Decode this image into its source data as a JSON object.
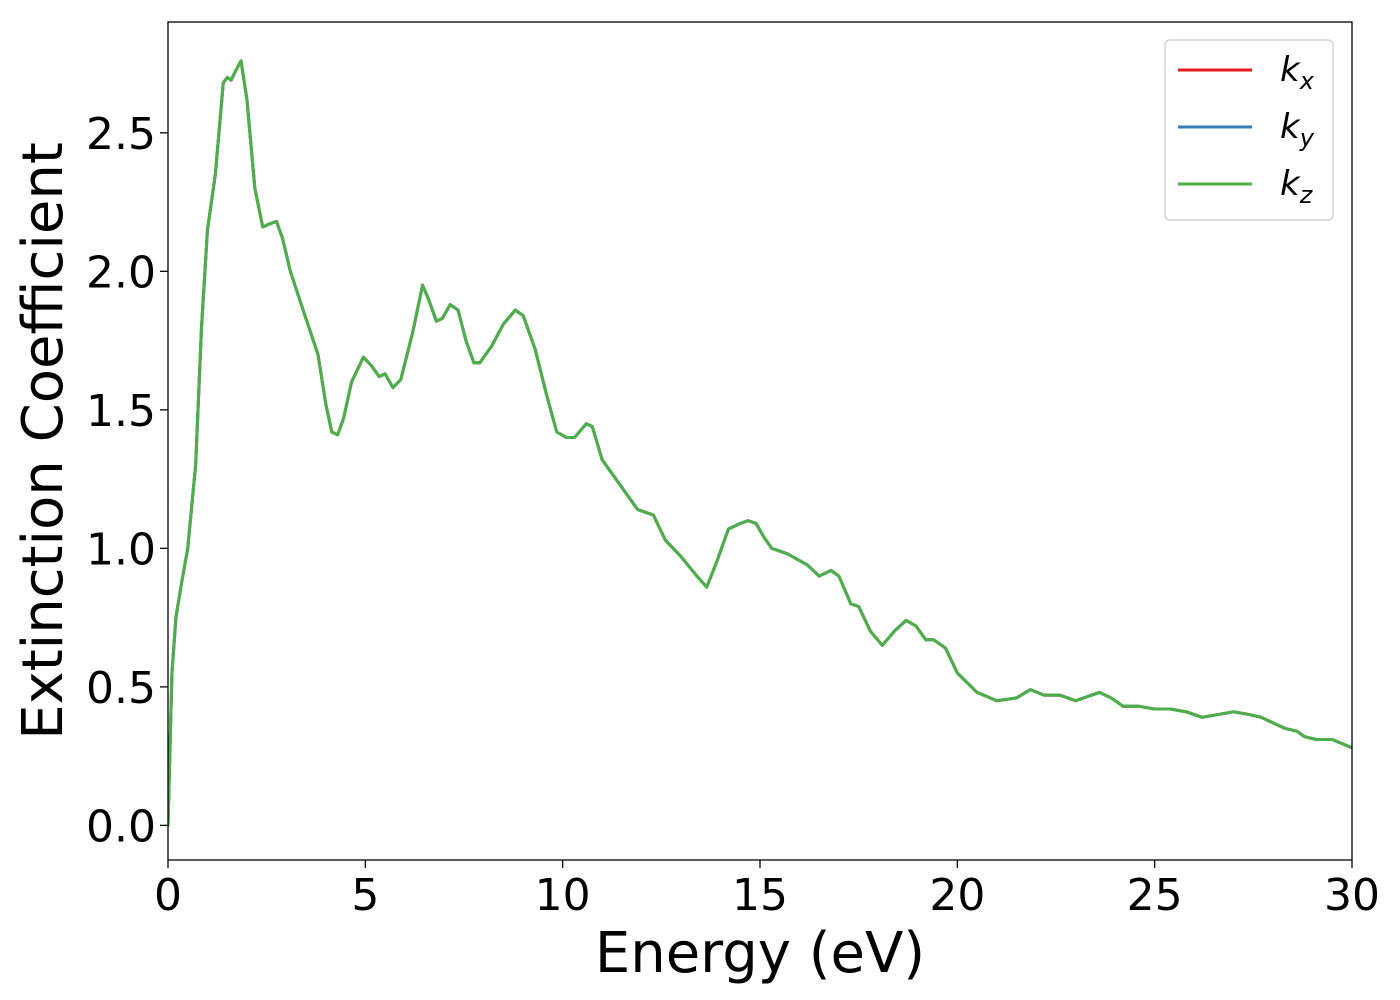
{
  "chart_data": {
    "type": "line",
    "xlabel": "Energy (eV)",
    "ylabel": "Extinction Coefficient",
    "xlim": [
      0,
      30
    ],
    "ylim": [
      -0.125,
      2.9
    ],
    "xticks": [
      0,
      5,
      10,
      15,
      20,
      25,
      30
    ],
    "xtick_labels": [
      "0",
      "5",
      "10",
      "15",
      "20",
      "25",
      "30"
    ],
    "yticks": [
      0.0,
      0.5,
      1.0,
      1.5,
      2.0,
      2.5
    ],
    "ytick_labels": [
      "0.0",
      "0.5",
      "1.0",
      "1.5",
      "2.0",
      "2.5"
    ],
    "grid": false,
    "legend_position": "top-right",
    "series": [
      {
        "name": "k",
        "subscript": "x",
        "color": "#e41a1c"
      },
      {
        "name": "k",
        "subscript": "y",
        "color": "#377eb8"
      },
      {
        "name": "k",
        "subscript": "z",
        "color": "#4daf4a"
      }
    ],
    "shared_curve": {
      "x": [
        0,
        0.1,
        0.2,
        0.35,
        0.5,
        0.7,
        0.85,
        1.0,
        1.2,
        1.4,
        1.5,
        1.6,
        1.7,
        1.85,
        2.0,
        2.2,
        2.4,
        2.55,
        2.75,
        2.9,
        3.1,
        3.4,
        3.8,
        4.0,
        4.15,
        4.3,
        4.45,
        4.65,
        4.95,
        5.15,
        5.35,
        5.5,
        5.7,
        5.9,
        6.2,
        6.45,
        6.6,
        6.8,
        6.95,
        7.15,
        7.35,
        7.55,
        7.75,
        7.9,
        8.2,
        8.5,
        8.8,
        9.0,
        9.3,
        9.6,
        9.85,
        10.1,
        10.3,
        10.6,
        10.75,
        11.0,
        11.5,
        11.9,
        12.3,
        12.6,
        13.0,
        13.4,
        13.65,
        13.9,
        14.2,
        14.5,
        14.7,
        14.9,
        15.1,
        15.3,
        15.7,
        16.2,
        16.5,
        16.8,
        17.0,
        17.3,
        17.5,
        17.8,
        18.1,
        18.4,
        18.7,
        18.95,
        19.2,
        19.4,
        19.7,
        20.0,
        20.5,
        21.0,
        21.5,
        21.85,
        22.2,
        22.6,
        23.0,
        23.6,
        23.9,
        24.2,
        24.6,
        25.0,
        25.4,
        25.8,
        26.2,
        26.6,
        27.0,
        27.4,
        27.7,
        28.0,
        28.3,
        28.6,
        28.8,
        29.1,
        29.5,
        30.0
      ],
      "y": [
        0.0,
        0.55,
        0.75,
        0.88,
        1.0,
        1.3,
        1.8,
        2.15,
        2.35,
        2.68,
        2.7,
        2.69,
        2.72,
        2.76,
        2.62,
        2.3,
        2.16,
        2.17,
        2.18,
        2.12,
        2.0,
        1.87,
        1.7,
        1.52,
        1.42,
        1.41,
        1.47,
        1.6,
        1.69,
        1.66,
        1.62,
        1.63,
        1.58,
        1.61,
        1.78,
        1.95,
        1.9,
        1.82,
        1.83,
        1.88,
        1.86,
        1.75,
        1.67,
        1.67,
        1.73,
        1.81,
        1.86,
        1.84,
        1.72,
        1.55,
        1.42,
        1.4,
        1.4,
        1.45,
        1.44,
        1.32,
        1.22,
        1.14,
        1.12,
        1.03,
        0.97,
        0.9,
        0.86,
        0.95,
        1.07,
        1.09,
        1.1,
        1.09,
        1.04,
        1.0,
        0.98,
        0.94,
        0.9,
        0.92,
        0.9,
        0.8,
        0.79,
        0.7,
        0.65,
        0.7,
        0.74,
        0.72,
        0.67,
        0.67,
        0.64,
        0.55,
        0.48,
        0.45,
        0.46,
        0.49,
        0.47,
        0.47,
        0.45,
        0.48,
        0.46,
        0.43,
        0.43,
        0.42,
        0.42,
        0.41,
        0.39,
        0.4,
        0.41,
        0.4,
        0.39,
        0.37,
        0.35,
        0.34,
        0.32,
        0.31,
        0.31,
        0.28
      ]
    }
  }
}
